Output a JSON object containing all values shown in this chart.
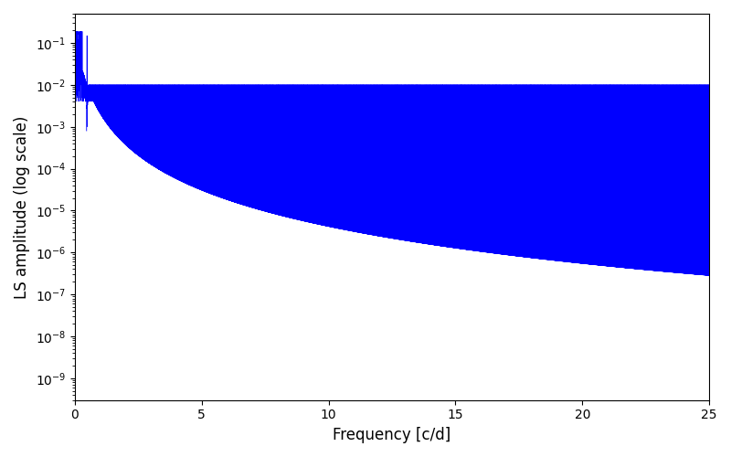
{
  "title": "",
  "xlabel": "Frequency [c/d]",
  "ylabel": "LS amplitude (log scale)",
  "xlim": [
    0,
    25
  ],
  "ylim": [
    3e-10,
    0.5
  ],
  "line_color": "blue",
  "line_width": 0.3,
  "figsize": [
    8.0,
    5.0
  ],
  "dpi": 100,
  "seed": 42,
  "n_points": 15000,
  "freq_max": 25.0,
  "background_color": "white"
}
